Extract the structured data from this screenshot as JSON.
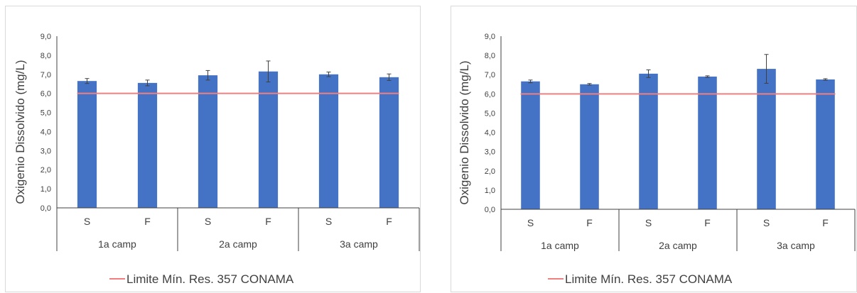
{
  "chart_data": [
    {
      "type": "bar",
      "ylabel": "Oxigenio Dissolvido (mg/L)",
      "ylim": [
        0,
        9
      ],
      "y_ticks": [
        "0,0",
        "1,0",
        "2,0",
        "3,0",
        "4,0",
        "5,0",
        "6,0",
        "7,0",
        "8,0",
        "9,0"
      ],
      "groups": [
        "1a camp",
        "2a camp",
        "3a camp"
      ],
      "categories": [
        "S",
        "F",
        "S",
        "F",
        "S",
        "F"
      ],
      "series": [
        {
          "values": [
            6.65,
            6.55,
            6.95,
            7.15,
            7.0,
            6.85
          ],
          "errors": [
            0.13,
            0.15,
            0.25,
            0.55,
            0.12,
            0.17
          ],
          "color": "#4472C4"
        }
      ],
      "reference_line": {
        "name": "Limite Mín. Res. 357 CONAMA",
        "value": 6.0,
        "color": "#F08080"
      },
      "legend_position": "bottom",
      "grid": false
    },
    {
      "type": "bar",
      "ylabel": "Oxigenio Dissolvido (mg/L)",
      "ylim": [
        0,
        9
      ],
      "y_ticks": [
        "0,0",
        "1,0",
        "2,0",
        "3,0",
        "4,0",
        "5,0",
        "6,0",
        "7,0",
        "8,0",
        "9,0"
      ],
      "groups": [
        "1a camp",
        "2a camp",
        "3a camp"
      ],
      "categories": [
        "S",
        "F",
        "S",
        "F",
        "S",
        "F"
      ],
      "series": [
        {
          "values": [
            6.65,
            6.5,
            7.05,
            6.9,
            7.3,
            6.75
          ],
          "errors": [
            0.07,
            0.04,
            0.2,
            0.04,
            0.75,
            0.04
          ],
          "color": "#4472C4"
        }
      ],
      "reference_line": {
        "name": "Limite Mín. Res. 357 CONAMA",
        "value": 6.0,
        "color": "#F08080"
      },
      "legend_position": "bottom",
      "grid": false
    }
  ]
}
